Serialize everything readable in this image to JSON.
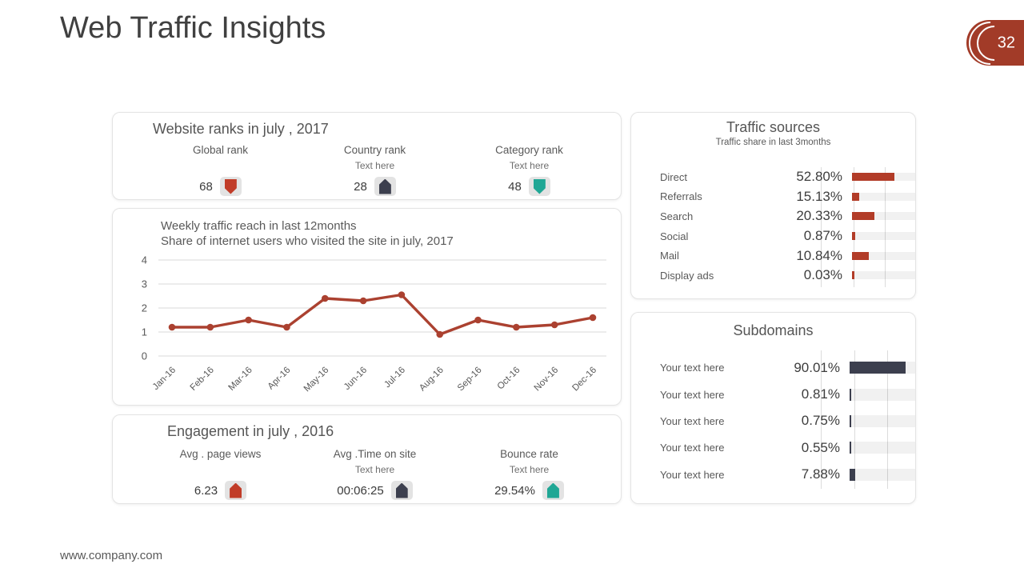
{
  "slide": {
    "title": "Web Traffic Insights",
    "page_number": "32",
    "footer": "www.company.com"
  },
  "colors": {
    "accent_red": "#b23c28",
    "accent_navy": "#3c3f4e",
    "accent_teal": "#20a795",
    "badge_red": "#a23b28",
    "icon_red": "#c13c28"
  },
  "website_ranks": {
    "title": "Website ranks in july , 2017",
    "stats": [
      {
        "label": "Global rank",
        "sublabel": "",
        "value": "68",
        "icon": {
          "name": "shield-down-icon",
          "shape": "pent-down",
          "color": "#c13c28"
        }
      },
      {
        "label": "Country rank",
        "sublabel": "Text here",
        "value": "28",
        "icon": {
          "name": "home-up-icon",
          "shape": "pent-up",
          "color": "#3c3f4e"
        }
      },
      {
        "label": "Category rank",
        "sublabel": "Text here",
        "value": "48",
        "icon": {
          "name": "shield-down-icon",
          "shape": "pent-down",
          "color": "#20a795"
        }
      }
    ]
  },
  "engagement": {
    "title": "Engagement  in july , 2016",
    "stats": [
      {
        "label": "Avg . page views",
        "sublabel": "",
        "value": "6.23",
        "icon": {
          "name": "home-up-icon",
          "shape": "pent-up",
          "color": "#c13c28"
        }
      },
      {
        "label": "Avg .Time on site",
        "sublabel": "Text here",
        "value": "00:06:25",
        "icon": {
          "name": "home-up-icon",
          "shape": "pent-up",
          "color": "#3c3f4e"
        }
      },
      {
        "label": "Bounce rate",
        "sublabel": "Text here",
        "value": "29.54%",
        "icon": {
          "name": "home-up-icon",
          "shape": "pent-up",
          "color": "#20a795"
        }
      }
    ]
  },
  "chart_data": [
    {
      "id": "weekly-traffic",
      "type": "line",
      "title": "Weekly traffic reach in last 12months",
      "subtitle": "Share of internet users who visited the site in july,  2017",
      "categories": [
        "Jan-16",
        "Feb-16",
        "Mar-16",
        "Apr-16",
        "May-16",
        "Jun-16",
        "Jul-16",
        "Aug-16",
        "Sep-16",
        "Oct-16",
        "Nov-16",
        "Dec-16"
      ],
      "values": [
        1.2,
        1.2,
        1.5,
        1.2,
        2.4,
        2.3,
        2.55,
        0.9,
        1.5,
        1.2,
        1.3,
        1.6
      ],
      "ylim": [
        0,
        4
      ],
      "yticks": [
        0,
        1,
        2,
        3,
        4
      ],
      "grid": true,
      "legend": "none",
      "line_color": "#ab4130"
    },
    {
      "id": "traffic-sources",
      "type": "bar",
      "title": "Traffic sources",
      "subtitle": "Traffic share in last 3months",
      "categories": [
        "Direct",
        "Referrals",
        "Search",
        "Social",
        "Mail",
        "Display ads"
      ],
      "values": [
        52.8,
        15.13,
        20.33,
        0.87,
        10.84,
        0.03
      ],
      "value_labels": [
        "52.80%",
        "15.13%",
        "20.33%",
        "0.87%",
        "10.84%",
        "0.03%"
      ],
      "display_widths_pct": [
        67,
        11,
        35,
        5,
        27,
        4
      ],
      "bar_color": "#b23c28",
      "orientation": "horizontal"
    },
    {
      "id": "subdomains",
      "type": "bar",
      "title": "Subdomains",
      "categories": [
        "Your text here",
        "Your text here",
        "Your text here",
        "Your text here",
        "Your text here"
      ],
      "values": [
        90.01,
        0.81,
        0.75,
        0.55,
        7.88
      ],
      "value_labels": [
        "90.01%",
        "0.81%",
        "0.75%",
        "0.55%",
        "7.88%"
      ],
      "display_widths_pct": [
        85,
        2,
        2,
        3,
        9
      ],
      "bar_color": "#3c3f4e",
      "orientation": "horizontal"
    }
  ]
}
